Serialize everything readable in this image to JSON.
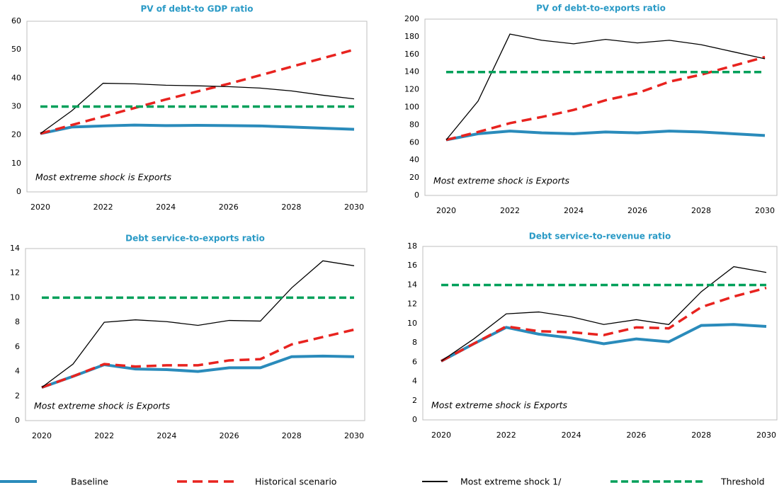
{
  "chart_data": [
    {
      "type": "line",
      "title": "PV of debt-to GDP ratio",
      "annotation": "Most extreme shock is Exports",
      "x": [
        2020,
        2021,
        2022,
        2023,
        2024,
        2025,
        2026,
        2027,
        2028,
        2029,
        2030
      ],
      "xticks": [
        2020,
        2022,
        2024,
        2026,
        2028,
        2030
      ],
      "ylim": [
        0,
        60
      ],
      "yticks": [
        0,
        10,
        20,
        30,
        40,
        50,
        60
      ],
      "series": [
        {
          "name": "Baseline",
          "color": "#2a8bbb",
          "dashed": false,
          "values": [
            20.5,
            22.8,
            23.2,
            23.5,
            23.3,
            23.4,
            23.3,
            23.2,
            22.8,
            22.4,
            22.0
          ]
        },
        {
          "name": "Historical scenario",
          "color": "#e8231f",
          "dashed": true,
          "values": [
            20.5,
            23.5,
            26.5,
            29.5,
            32.5,
            35.3,
            38.0,
            41.0,
            44.0,
            47.0,
            50.0
          ]
        },
        {
          "name": "Most extreme shock 1/",
          "color": "#000000",
          "dashed": false,
          "values": [
            20.5,
            28.5,
            38.2,
            38.0,
            37.5,
            37.3,
            37.0,
            36.5,
            35.5,
            34.0,
            32.7
          ]
        },
        {
          "name": "Threshold",
          "color": "#00a05a",
          "dashed": true,
          "values": [
            30,
            30,
            30,
            30,
            30,
            30,
            30,
            30,
            30,
            30,
            30
          ]
        }
      ]
    },
    {
      "type": "line",
      "title": "PV of debt-to-exports ratio",
      "annotation": "Most extreme shock is Exports",
      "x": [
        2020,
        2021,
        2022,
        2023,
        2024,
        2025,
        2026,
        2027,
        2028,
        2029,
        2030
      ],
      "xticks": [
        2020,
        2022,
        2024,
        2026,
        2028,
        2030
      ],
      "ylim": [
        0,
        200
      ],
      "yticks": [
        0,
        20,
        40,
        60,
        80,
        100,
        120,
        140,
        160,
        180,
        200
      ],
      "series": [
        {
          "name": "Baseline",
          "color": "#2a8bbb",
          "dashed": false,
          "values": [
            63,
            70,
            73,
            71,
            70,
            72,
            71,
            73,
            72,
            70,
            68
          ]
        },
        {
          "name": "Historical scenario",
          "color": "#e8231f",
          "dashed": true,
          "values": [
            63,
            72,
            82,
            89,
            97,
            108,
            116,
            129,
            137,
            147,
            157
          ]
        },
        {
          "name": "Most extreme shock 1/",
          "color": "#000000",
          "dashed": false,
          "values": [
            63,
            107,
            183,
            176,
            172,
            177,
            173,
            176,
            171,
            163,
            155
          ]
        },
        {
          "name": "Threshold",
          "color": "#00a05a",
          "dashed": true,
          "values": [
            140,
            140,
            140,
            140,
            140,
            140,
            140,
            140,
            140,
            140,
            140
          ]
        }
      ]
    },
    {
      "type": "line",
      "title": "Debt service-to-exports ratio",
      "annotation": "Most extreme shock is Exports",
      "x": [
        2020,
        2021,
        2022,
        2023,
        2024,
        2025,
        2026,
        2027,
        2028,
        2029,
        2030
      ],
      "xticks": [
        2020,
        2022,
        2024,
        2026,
        2028,
        2030
      ],
      "ylim": [
        0,
        14
      ],
      "yticks": [
        0,
        2,
        4,
        6,
        8,
        10,
        12,
        14
      ],
      "series": [
        {
          "name": "Baseline",
          "color": "#2a8bbb",
          "dashed": false,
          "values": [
            2.7,
            3.6,
            4.55,
            4.2,
            4.15,
            4.0,
            4.3,
            4.3,
            5.2,
            5.25,
            5.2
          ]
        },
        {
          "name": "Historical scenario",
          "color": "#e8231f",
          "dashed": true,
          "values": [
            2.7,
            3.6,
            4.6,
            4.4,
            4.5,
            4.5,
            4.9,
            5.0,
            6.2,
            6.8,
            7.4
          ]
        },
        {
          "name": "Most extreme shock 1/",
          "color": "#000000",
          "dashed": false,
          "values": [
            2.7,
            4.6,
            8.0,
            8.2,
            8.05,
            7.75,
            8.15,
            8.1,
            10.8,
            13.0,
            12.6
          ]
        },
        {
          "name": "Threshold",
          "color": "#00a05a",
          "dashed": true,
          "values": [
            10,
            10,
            10,
            10,
            10,
            10,
            10,
            10,
            10,
            10,
            10
          ]
        }
      ]
    },
    {
      "type": "line",
      "title": "Debt service-to-revenue ratio",
      "annotation": "Most extreme shock is Exports",
      "x": [
        2020,
        2021,
        2022,
        2023,
        2024,
        2025,
        2026,
        2027,
        2028,
        2029,
        2030
      ],
      "xticks": [
        2020,
        2022,
        2024,
        2026,
        2028,
        2030
      ],
      "ylim": [
        0,
        18
      ],
      "yticks": [
        0,
        2,
        4,
        6,
        8,
        10,
        12,
        14,
        16,
        18
      ],
      "series": [
        {
          "name": "Baseline",
          "color": "#2a8bbb",
          "dashed": false,
          "values": [
            6.1,
            7.9,
            9.6,
            8.9,
            8.5,
            7.9,
            8.4,
            8.1,
            9.8,
            9.9,
            9.7
          ]
        },
        {
          "name": "Historical scenario",
          "color": "#e8231f",
          "dashed": true,
          "values": [
            6.1,
            7.9,
            9.7,
            9.2,
            9.1,
            8.8,
            9.6,
            9.5,
            11.7,
            12.8,
            13.7
          ]
        },
        {
          "name": "Most extreme shock 1/",
          "color": "#000000",
          "dashed": false,
          "values": [
            6.1,
            8.4,
            11.0,
            11.2,
            10.7,
            9.9,
            10.4,
            9.9,
            13.3,
            15.9,
            15.3
          ]
        },
        {
          "name": "Threshold",
          "color": "#00a05a",
          "dashed": true,
          "values": [
            14,
            14,
            14,
            14,
            14,
            14,
            14,
            14,
            14,
            14,
            14
          ]
        }
      ]
    }
  ]
}
